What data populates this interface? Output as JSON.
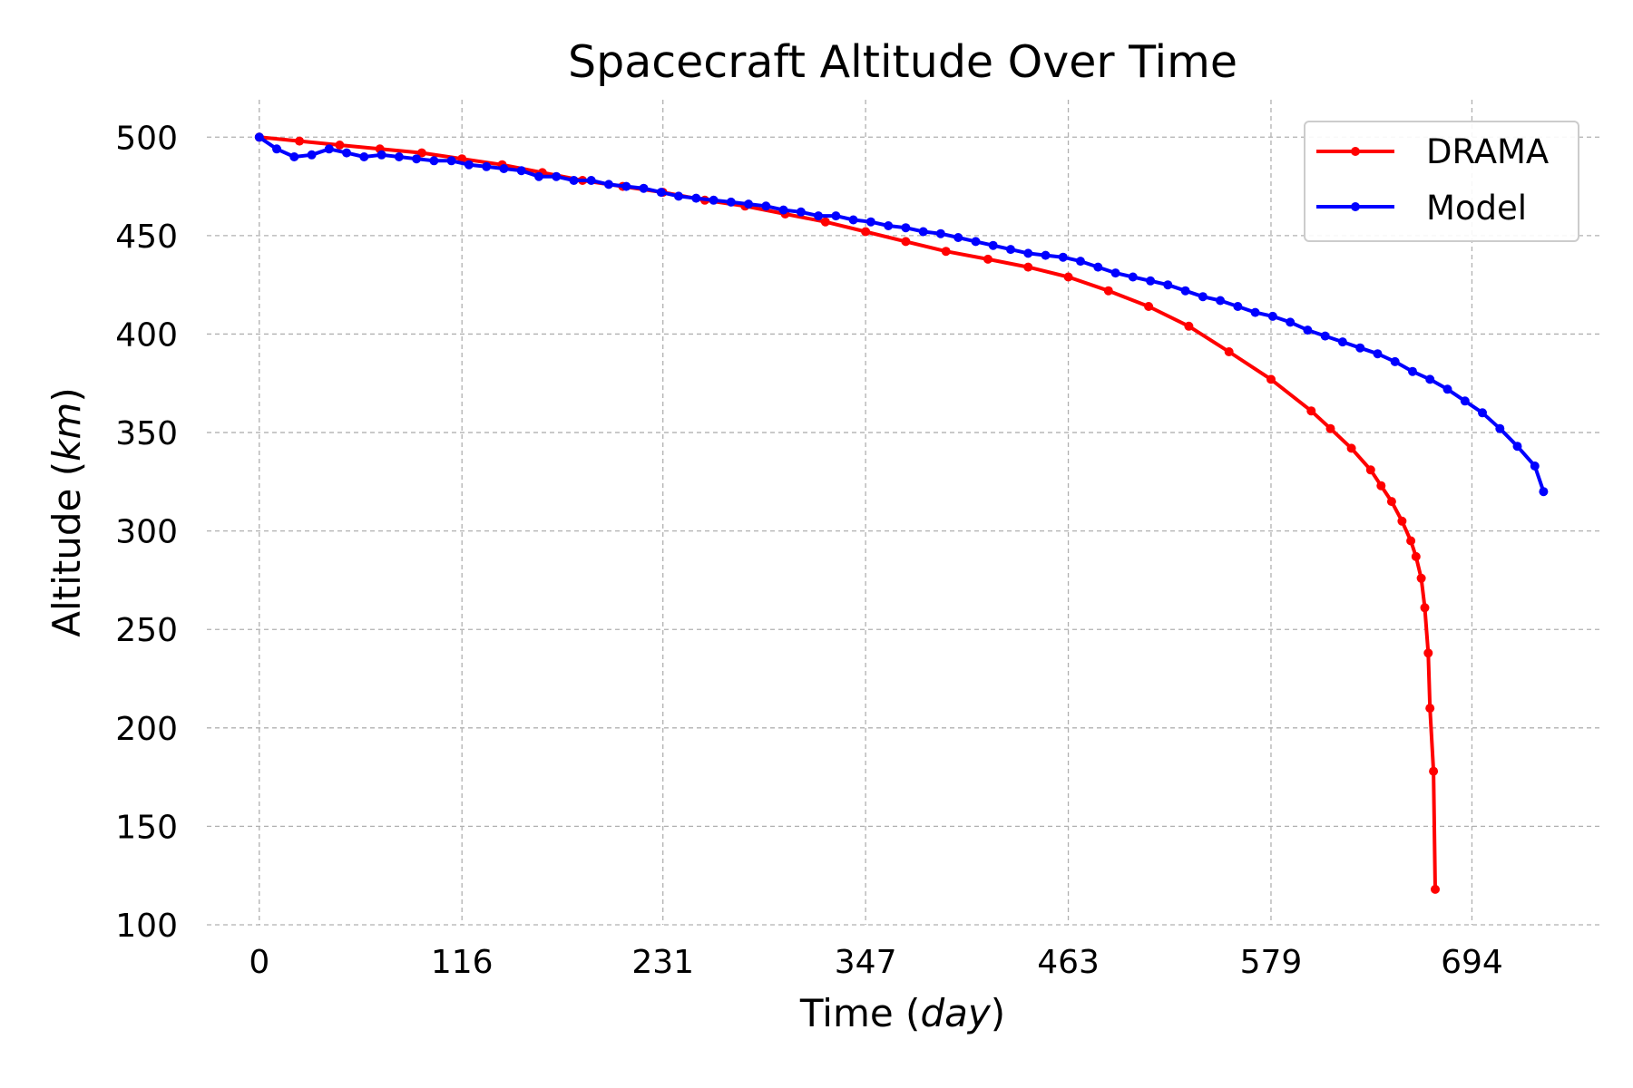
{
  "chart_data": {
    "type": "line",
    "title": "Spacecraft Altitude Over Time",
    "xlabel": {
      "prefix": "Time (",
      "unit": "day",
      "suffix": ")"
    },
    "ylabel": {
      "prefix": "Altitude (",
      "unit": "km",
      "suffix": ")"
    },
    "xlim": [
      -30,
      768
    ],
    "ylim": [
      100,
      519
    ],
    "xticks": [
      0,
      116,
      231,
      347,
      463,
      579,
      694
    ],
    "yticks": [
      100,
      150,
      200,
      250,
      300,
      350,
      400,
      450,
      500
    ],
    "grid": true,
    "legend": "top-right",
    "series": [
      {
        "name": "DRAMA",
        "color": "#ff0000",
        "x": [
          0,
          23,
          46,
          69,
          93,
          116,
          139,
          162,
          185,
          208,
          231,
          255,
          278,
          301,
          324,
          347,
          370,
          393,
          417,
          440,
          463,
          486,
          509,
          532,
          555,
          579,
          602,
          613,
          625,
          636,
          642,
          648,
          654,
          659,
          662,
          665,
          667,
          669,
          670,
          672,
          673
        ],
        "values": [
          500,
          498,
          496,
          494,
          492,
          489,
          486,
          482,
          478,
          475,
          472,
          468,
          465,
          461,
          457,
          452,
          447,
          442,
          438,
          434,
          429,
          422,
          414,
          404,
          391,
          377,
          361,
          352,
          342,
          331,
          323,
          315,
          305,
          295,
          287,
          276,
          261,
          238,
          210,
          178,
          118
        ]
      },
      {
        "name": "Model",
        "color": "#0000ff",
        "x": [
          0,
          10,
          20,
          30,
          40,
          50,
          60,
          70,
          80,
          90,
          100,
          110,
          120,
          130,
          140,
          150,
          160,
          170,
          180,
          190,
          200,
          210,
          220,
          230,
          240,
          250,
          260,
          270,
          280,
          290,
          300,
          310,
          320,
          330,
          340,
          350,
          360,
          370,
          380,
          390,
          400,
          410,
          420,
          430,
          440,
          450,
          460,
          470,
          480,
          490,
          500,
          510,
          520,
          530,
          540,
          550,
          560,
          570,
          580,
          590,
          600,
          610,
          620,
          630,
          640,
          650,
          660,
          670,
          680,
          690,
          700,
          710,
          720,
          730,
          735
        ],
        "values": [
          500,
          494,
          490,
          491,
          494,
          492,
          490,
          491,
          490,
          489,
          488,
          488,
          486,
          485,
          484,
          483,
          480,
          480,
          478,
          478,
          476,
          475,
          474,
          472,
          470,
          469,
          468,
          467,
          466,
          465,
          463,
          462,
          460,
          460,
          458,
          457,
          455,
          454,
          452,
          451,
          449,
          447,
          445,
          443,
          441,
          440,
          439,
          437,
          434,
          431,
          429,
          427,
          425,
          422,
          419,
          417,
          414,
          411,
          409,
          406,
          402,
          399,
          396,
          393,
          390,
          386,
          381,
          377,
          372,
          366,
          360,
          352,
          343,
          333,
          320
        ]
      }
    ]
  }
}
